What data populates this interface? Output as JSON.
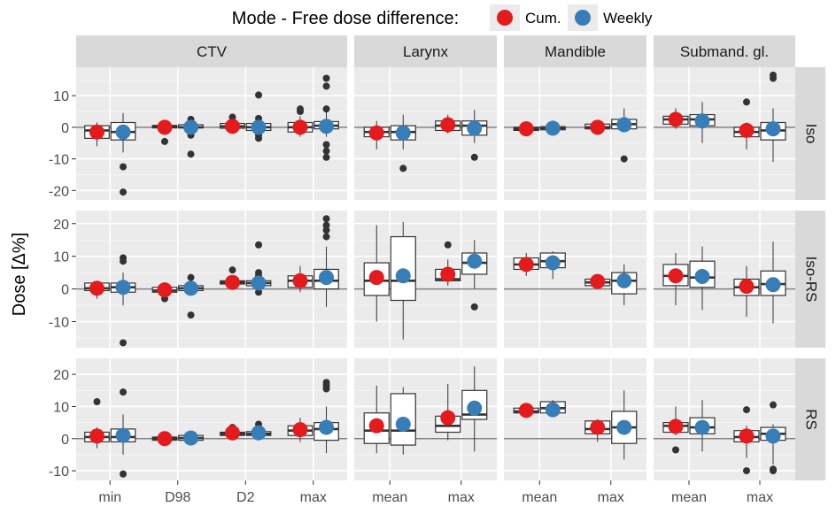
{
  "chart_data": {
    "type": "boxplot",
    "legend": {
      "title": "Mode - Free dose difference:",
      "position": "top",
      "items": [
        {
          "label": "Cum.",
          "color": "#e41a1c"
        },
        {
          "label": "Weekly",
          "color": "#377eb8"
        }
      ]
    },
    "ylabel": "Dose [Δ%]",
    "grid": true,
    "columns": [
      {
        "title": "CTV",
        "categories": [
          "min",
          "D98",
          "D2",
          "max"
        ]
      },
      {
        "title": "Larynx",
        "categories": [
          "mean",
          "max"
        ]
      },
      {
        "title": "Mandible",
        "categories": [
          "mean",
          "max"
        ]
      },
      {
        "title": "Submand. gl.",
        "categories": [
          "mean",
          "max"
        ]
      }
    ],
    "rows": [
      {
        "title": "Iso",
        "ylim": [
          -23,
          19
        ],
        "yticks": [
          -20,
          -10,
          0,
          10
        ]
      },
      {
        "title": "Iso-RS",
        "ylim": [
          -18,
          24
        ],
        "yticks": [
          -10,
          0,
          10,
          20
        ]
      },
      {
        "title": "RS",
        "ylim": [
          -13,
          25
        ],
        "yticks": [
          -10,
          0,
          10,
          20
        ]
      }
    ],
    "series": [
      {
        "name": "Cum.",
        "color": "#e41a1c"
      },
      {
        "name": "Weekly",
        "color": "#377eb8"
      }
    ],
    "boxes": [
      [
        [
          {
            "cum": {
              "q1": -3.5,
              "med": -1,
              "q3": 0.5,
              "lo": -6,
              "hi": 1.5,
              "mean": -1.5,
              "out": []
            },
            "wk": {
              "q1": -4,
              "med": -1.5,
              "q3": 1.5,
              "lo": -8,
              "hi": 4.5,
              "mean": -1.5,
              "out": [
                -12.5,
                -20.5
              ]
            }
          },
          {
            "cum": {
              "q1": -0.2,
              "med": 0.2,
              "q3": 0.6,
              "lo": -1.5,
              "hi": 1.2,
              "mean": 0,
              "out": [
                -4.5
              ]
            },
            "wk": {
              "q1": -0.2,
              "med": 0,
              "q3": 0.8,
              "lo": -1.5,
              "hi": 1.5,
              "mean": 0,
              "out": [
                2.5,
                1.5,
                -2.5,
                -8.5
              ]
            }
          },
          {
            "cum": {
              "q1": -0.3,
              "med": 0.3,
              "q3": 1.2,
              "lo": -1,
              "hi": 2.5,
              "mean": 0.3,
              "out": [
                3.2
              ]
            },
            "wk": {
              "q1": -1,
              "med": 0,
              "q3": 1.2,
              "lo": -2,
              "hi": 2.5,
              "mean": 0,
              "out": [
                10.2,
                2.8,
                -2.5,
                -3.5
              ]
            }
          },
          {
            "cum": {
              "q1": -1.5,
              "med": 0,
              "q3": 1.5,
              "lo": -3,
              "hi": 3.5,
              "mean": 0,
              "out": [
                5,
                5.8
              ]
            },
            "wk": {
              "q1": -0.5,
              "med": 0.5,
              "q3": 1.8,
              "lo": -3,
              "hi": 5,
              "mean": 0.3,
              "out": [
                15.5,
                13,
                5.8,
                -5.5,
                -7.5,
                -9.5
              ]
            }
          }
        ],
        [
          {
            "cum": {
              "q1": -3,
              "med": -1.5,
              "q3": 0,
              "lo": -7,
              "hi": 2,
              "mean": -1.8,
              "out": []
            },
            "wk": {
              "q1": -4,
              "med": -1.5,
              "q3": 0.5,
              "lo": -7,
              "hi": 4,
              "mean": -1.8,
              "out": [
                -13
              ]
            }
          },
          {
            "cum": {
              "q1": -1,
              "med": 0.5,
              "q3": 2,
              "lo": -2,
              "hi": 4,
              "mean": 0.8,
              "out": []
            },
            "wk": {
              "q1": -2.5,
              "med": 0.5,
              "q3": 2,
              "lo": -5,
              "hi": 5.5,
              "mean": -0.3,
              "out": [
                -9.5
              ]
            }
          }
        ],
        [
          {
            "cum": {
              "q1": -1,
              "med": -0.5,
              "q3": 0,
              "lo": -1.5,
              "hi": 0.5,
              "mean": -0.5,
              "out": []
            },
            "wk": {
              "q1": -0.8,
              "med": -0.3,
              "q3": 0.2,
              "lo": -1,
              "hi": 0.8,
              "mean": -0.3,
              "out": []
            }
          },
          {
            "cum": {
              "q1": -0.5,
              "med": 0,
              "q3": 1,
              "lo": -1,
              "hi": 2,
              "mean": 0,
              "out": []
            },
            "wk": {
              "q1": -0.5,
              "med": 1,
              "q3": 2.5,
              "lo": -1.5,
              "hi": 6,
              "mean": 0.8,
              "out": [
                -10
              ]
            }
          }
        ],
        [
          {
            "cum": {
              "q1": 1,
              "med": 2.5,
              "q3": 3.5,
              "lo": -0.5,
              "hi": 6,
              "mean": 2.5,
              "out": []
            },
            "wk": {
              "q1": 0.5,
              "med": 2.5,
              "q3": 4,
              "lo": -5,
              "hi": 8,
              "mean": 2,
              "out": []
            }
          },
          {
            "cum": {
              "q1": -3,
              "med": -1.5,
              "q3": 0,
              "lo": -7,
              "hi": 1.5,
              "mean": -1,
              "out": [
                8
              ]
            },
            "wk": {
              "q1": -4,
              "med": -1,
              "q3": 1.5,
              "lo": -11,
              "hi": 6,
              "mean": -0.5,
              "out": [
                16.5,
                15.5
              ]
            }
          }
        ]
      ],
      [
        [
          {
            "cum": {
              "q1": -0.5,
              "med": 0.2,
              "q3": 1.8,
              "lo": -3,
              "hi": 2.5,
              "mean": 0.2,
              "out": []
            },
            "wk": {
              "q1": -1,
              "med": 0.5,
              "q3": 1.8,
              "lo": -5,
              "hi": 5,
              "mean": 0.5,
              "out": [
                9.5,
                8.5,
                -16.5
              ]
            }
          },
          {
            "cum": {
              "q1": -1,
              "med": -0.5,
              "q3": 0.5,
              "lo": -2,
              "hi": 1,
              "mean": -0.3,
              "out": [
                -3
              ]
            },
            "wk": {
              "q1": -0.5,
              "med": 0.2,
              "q3": 1,
              "lo": -1.5,
              "hi": 2,
              "mean": 0.2,
              "out": [
                3.5,
                -8
              ]
            }
          },
          {
            "cum": {
              "q1": 1.5,
              "med": 2,
              "q3": 2.5,
              "lo": 0.5,
              "hi": 4,
              "mean": 2,
              "out": [
                5.8
              ]
            },
            "wk": {
              "q1": 1,
              "med": 1.8,
              "q3": 2.5,
              "lo": 0,
              "hi": 4,
              "mean": 1.8,
              "out": [
                13.5,
                5,
                4,
                -1
              ]
            }
          },
          {
            "cum": {
              "q1": 0.5,
              "med": 2.5,
              "q3": 4,
              "lo": -1,
              "hi": 7,
              "mean": 2.5,
              "out": []
            },
            "wk": {
              "q1": 0,
              "med": 2.5,
              "q3": 6,
              "lo": -5.5,
              "hi": 13,
              "mean": 3.5,
              "out": [
                21.5,
                19.5,
                18,
                16
              ]
            }
          }
        ],
        [
          {
            "cum": {
              "q1": -2,
              "med": 2.5,
              "q3": 8,
              "lo": -10,
              "hi": 19.5,
              "mean": 3.5,
              "out": []
            },
            "wk": {
              "q1": -3.5,
              "med": 2.5,
              "q3": 16,
              "lo": -15.5,
              "hi": 20.5,
              "mean": 4,
              "out": []
            }
          },
          {
            "cum": {
              "q1": 2.5,
              "med": 3,
              "q3": 6,
              "lo": 1,
              "hi": 9,
              "mean": 4.5,
              "out": [
                13.5
              ]
            },
            "wk": {
              "q1": 4.5,
              "med": 8,
              "q3": 11,
              "lo": 0,
              "hi": 15,
              "mean": 8.5,
              "out": [
                -5.5
              ]
            }
          }
        ],
        [
          {
            "cum": {
              "q1": 6,
              "med": 7.5,
              "q3": 9.5,
              "lo": 4,
              "hi": 11,
              "mean": 7.5,
              "out": []
            },
            "wk": {
              "q1": 6.5,
              "med": 8.5,
              "q3": 11,
              "lo": 3,
              "hi": 11.5,
              "mean": 8,
              "out": []
            }
          },
          {
            "cum": {
              "q1": 1,
              "med": 2,
              "q3": 3,
              "lo": 0.5,
              "hi": 3.5,
              "mean": 2.3,
              "out": []
            },
            "wk": {
              "q1": -1.5,
              "med": 2.5,
              "q3": 5,
              "lo": -5,
              "hi": 7.5,
              "mean": 2.5,
              "out": []
            }
          }
        ],
        [
          {
            "cum": {
              "q1": 1,
              "med": 4,
              "q3": 7.5,
              "lo": -5,
              "hi": 11,
              "mean": 4,
              "out": []
            },
            "wk": {
              "q1": 0.5,
              "med": 3.5,
              "q3": 8.5,
              "lo": -6.5,
              "hi": 13,
              "mean": 3.8,
              "out": []
            }
          },
          {
            "cum": {
              "q1": -2,
              "med": 0.5,
              "q3": 3,
              "lo": -8.5,
              "hi": 7,
              "mean": 0.8,
              "out": []
            },
            "wk": {
              "q1": -2,
              "med": 1.5,
              "q3": 5.5,
              "lo": -10.5,
              "hi": 14.5,
              "mean": 1.3,
              "out": []
            }
          }
        ]
      ],
      [
        [
          {
            "cum": {
              "q1": -1,
              "med": 0.5,
              "q3": 2,
              "lo": -3,
              "hi": 3.5,
              "mean": 0.8,
              "out": [
                11.5
              ]
            },
            "wk": {
              "q1": -1,
              "med": 0.5,
              "q3": 3,
              "lo": -5,
              "hi": 7.5,
              "mean": 1,
              "out": [
                14.5,
                -11
              ]
            }
          },
          {
            "cum": {
              "q1": -0.5,
              "med": 0,
              "q3": 0.5,
              "lo": -1,
              "hi": 1,
              "mean": 0,
              "out": []
            },
            "wk": {
              "q1": -0.5,
              "med": 0.2,
              "q3": 1,
              "lo": -1.5,
              "hi": 1.5,
              "mean": 0.2,
              "out": []
            }
          },
          {
            "cum": {
              "q1": 1,
              "med": 1.5,
              "q3": 2,
              "lo": 0.5,
              "hi": 3.5,
              "mean": 1.8,
              "out": [
                3.5
              ]
            },
            "wk": {
              "q1": 1,
              "med": 1.5,
              "q3": 2.2,
              "lo": 0,
              "hi": 4.5,
              "mean": 1.8,
              "out": [
                4.5
              ]
            }
          },
          {
            "cum": {
              "q1": 1,
              "med": 2.5,
              "q3": 4,
              "lo": -1,
              "hi": 6.5,
              "mean": 2.8,
              "out": []
            },
            "wk": {
              "q1": -0.5,
              "med": 3,
              "q3": 5,
              "lo": -4.5,
              "hi": 10,
              "mean": 3.5,
              "out": [
                17.5,
                16.5,
                15.5
              ]
            }
          }
        ],
        [
          {
            "cum": {
              "q1": -1.5,
              "med": 2.5,
              "q3": 8,
              "lo": -4.5,
              "hi": 16.5,
              "mean": 4,
              "out": []
            },
            "wk": {
              "q1": -2,
              "med": 2.5,
              "q3": 14,
              "lo": -5,
              "hi": 16,
              "mean": 4.5,
              "out": []
            }
          },
          {
            "cum": {
              "q1": 2,
              "med": 4,
              "q3": 7,
              "lo": -0.5,
              "hi": 17,
              "mean": 6.5,
              "out": []
            },
            "wk": {
              "q1": 6,
              "med": 7.5,
              "q3": 15,
              "lo": -4,
              "hi": 22.5,
              "mean": 9.5,
              "out": []
            }
          }
        ],
        [
          {
            "cum": {
              "q1": 8,
              "med": 8.5,
              "q3": 9.5,
              "lo": 7.5,
              "hi": 9.8,
              "mean": 8.8,
              "out": []
            },
            "wk": {
              "q1": 8,
              "med": 9.5,
              "q3": 11.5,
              "lo": 7,
              "hi": 12,
              "mean": 9,
              "out": []
            }
          },
          {
            "cum": {
              "q1": 1.5,
              "med": 3,
              "q3": 5.5,
              "lo": -1,
              "hi": 6,
              "mean": 3.5,
              "out": []
            },
            "wk": {
              "q1": -1.5,
              "med": 3.5,
              "q3": 8.5,
              "lo": -6.5,
              "hi": 15,
              "mean": 3.5,
              "out": []
            }
          }
        ],
        [
          {
            "cum": {
              "q1": 2,
              "med": 4,
              "q3": 5,
              "lo": 1,
              "hi": 10,
              "mean": 3.8,
              "out": [
                -3.5
              ]
            },
            "wk": {
              "q1": 1.5,
              "med": 3.5,
              "q3": 6.5,
              "lo": -4,
              "hi": 12,
              "mean": 3.5,
              "out": []
            }
          },
          {
            "cum": {
              "q1": -1,
              "med": 0.5,
              "q3": 2.5,
              "lo": -6,
              "hi": 4,
              "mean": 0.8,
              "out": [
                9,
                -10
              ]
            },
            "wk": {
              "q1": -0.5,
              "med": 1.5,
              "q3": 3.5,
              "lo": -8,
              "hi": 4.5,
              "mean": 0.8,
              "out": [
                10.5,
                -9.5,
                -10
              ]
            }
          }
        ]
      ]
    ]
  }
}
